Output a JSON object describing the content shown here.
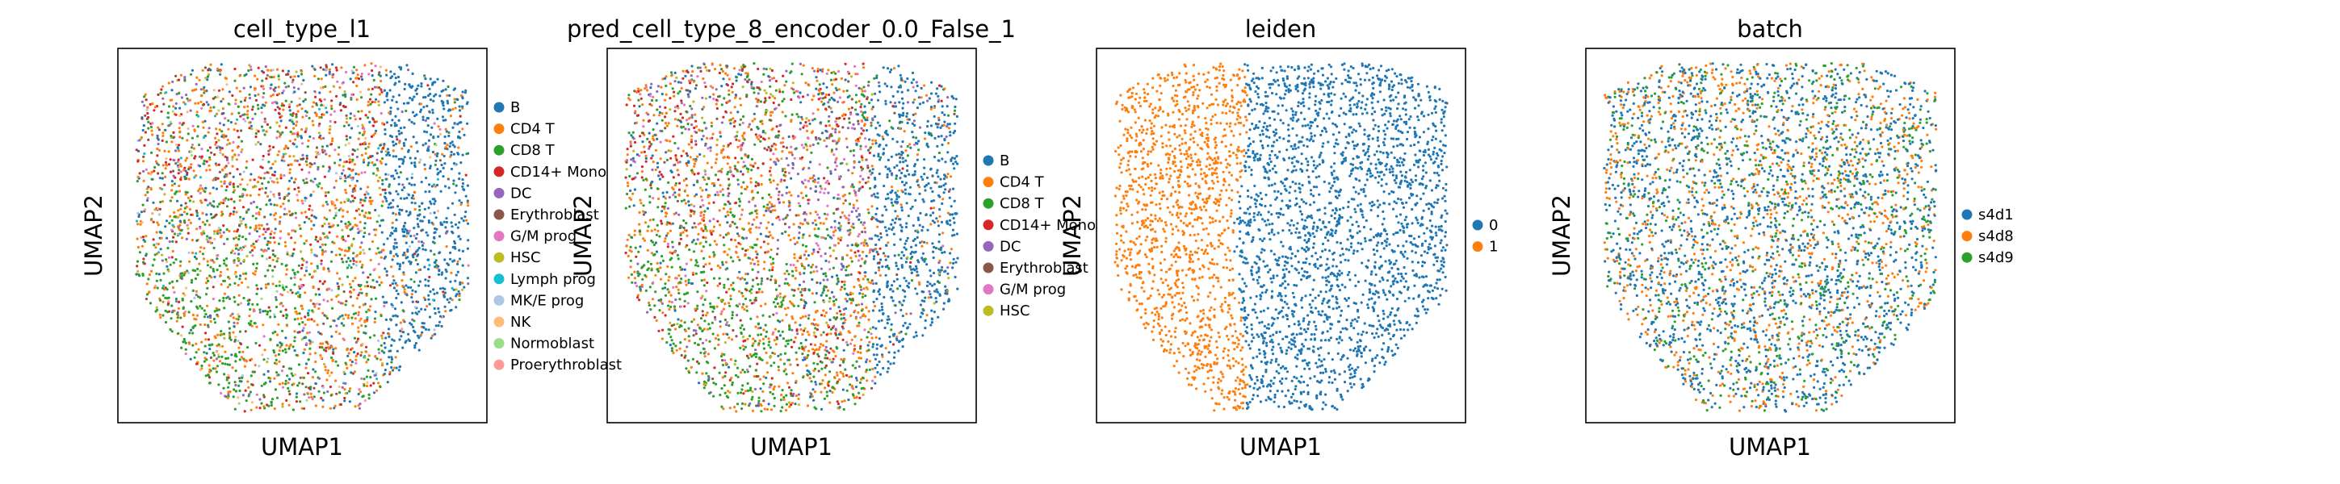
{
  "figure": {
    "xlabel": "UMAP1",
    "ylabel": "UMAP2"
  },
  "chart_data": [
    {
      "type": "scatter",
      "title": "cell_type_l1",
      "xlabel": "UMAP1",
      "ylabel": "UMAP2",
      "grid": false,
      "legend_placement": "right",
      "categories": [
        "B",
        "CD4 T",
        "CD8 T",
        "CD14+ Mono",
        "DC",
        "Erythroblast",
        "G/M prog",
        "HSC",
        "Lymph prog",
        "MK/E prog",
        "NK",
        "Normoblast",
        "Proerythroblast"
      ],
      "colors": [
        "#1f77b4",
        "#ff7f0e",
        "#2ca02c",
        "#d62728",
        "#9467bd",
        "#8c564b",
        "#e377c2",
        "#bcbd22",
        "#17becf",
        "#aec7e8",
        "#ffbb78",
        "#98df8a",
        "#ff9896"
      ]
    },
    {
      "type": "scatter",
      "title": "pred_cell_type_8_encoder_0.0_False_1",
      "xlabel": "UMAP1",
      "ylabel": "UMAP2",
      "grid": false,
      "legend_placement": "right",
      "categories": [
        "B",
        "CD4 T",
        "CD8 T",
        "CD14+ Mono",
        "DC",
        "Erythroblast",
        "G/M prog",
        "HSC"
      ],
      "colors": [
        "#1f77b4",
        "#ff7f0e",
        "#2ca02c",
        "#d62728",
        "#9467bd",
        "#8c564b",
        "#e377c2",
        "#bcbd22"
      ]
    },
    {
      "type": "scatter",
      "title": "leiden",
      "xlabel": "UMAP1",
      "ylabel": "UMAP2",
      "grid": false,
      "legend_placement": "right",
      "categories": [
        "0",
        "1"
      ],
      "colors": [
        "#1f77b4",
        "#ff7f0e"
      ]
    },
    {
      "type": "scatter",
      "title": "batch",
      "xlabel": "UMAP1",
      "ylabel": "UMAP2",
      "grid": false,
      "legend_placement": "right",
      "categories": [
        "s4d1",
        "s4d8",
        "s4d9"
      ],
      "colors": [
        "#1f77b4",
        "#ff7f0e",
        "#2ca02c"
      ]
    }
  ]
}
